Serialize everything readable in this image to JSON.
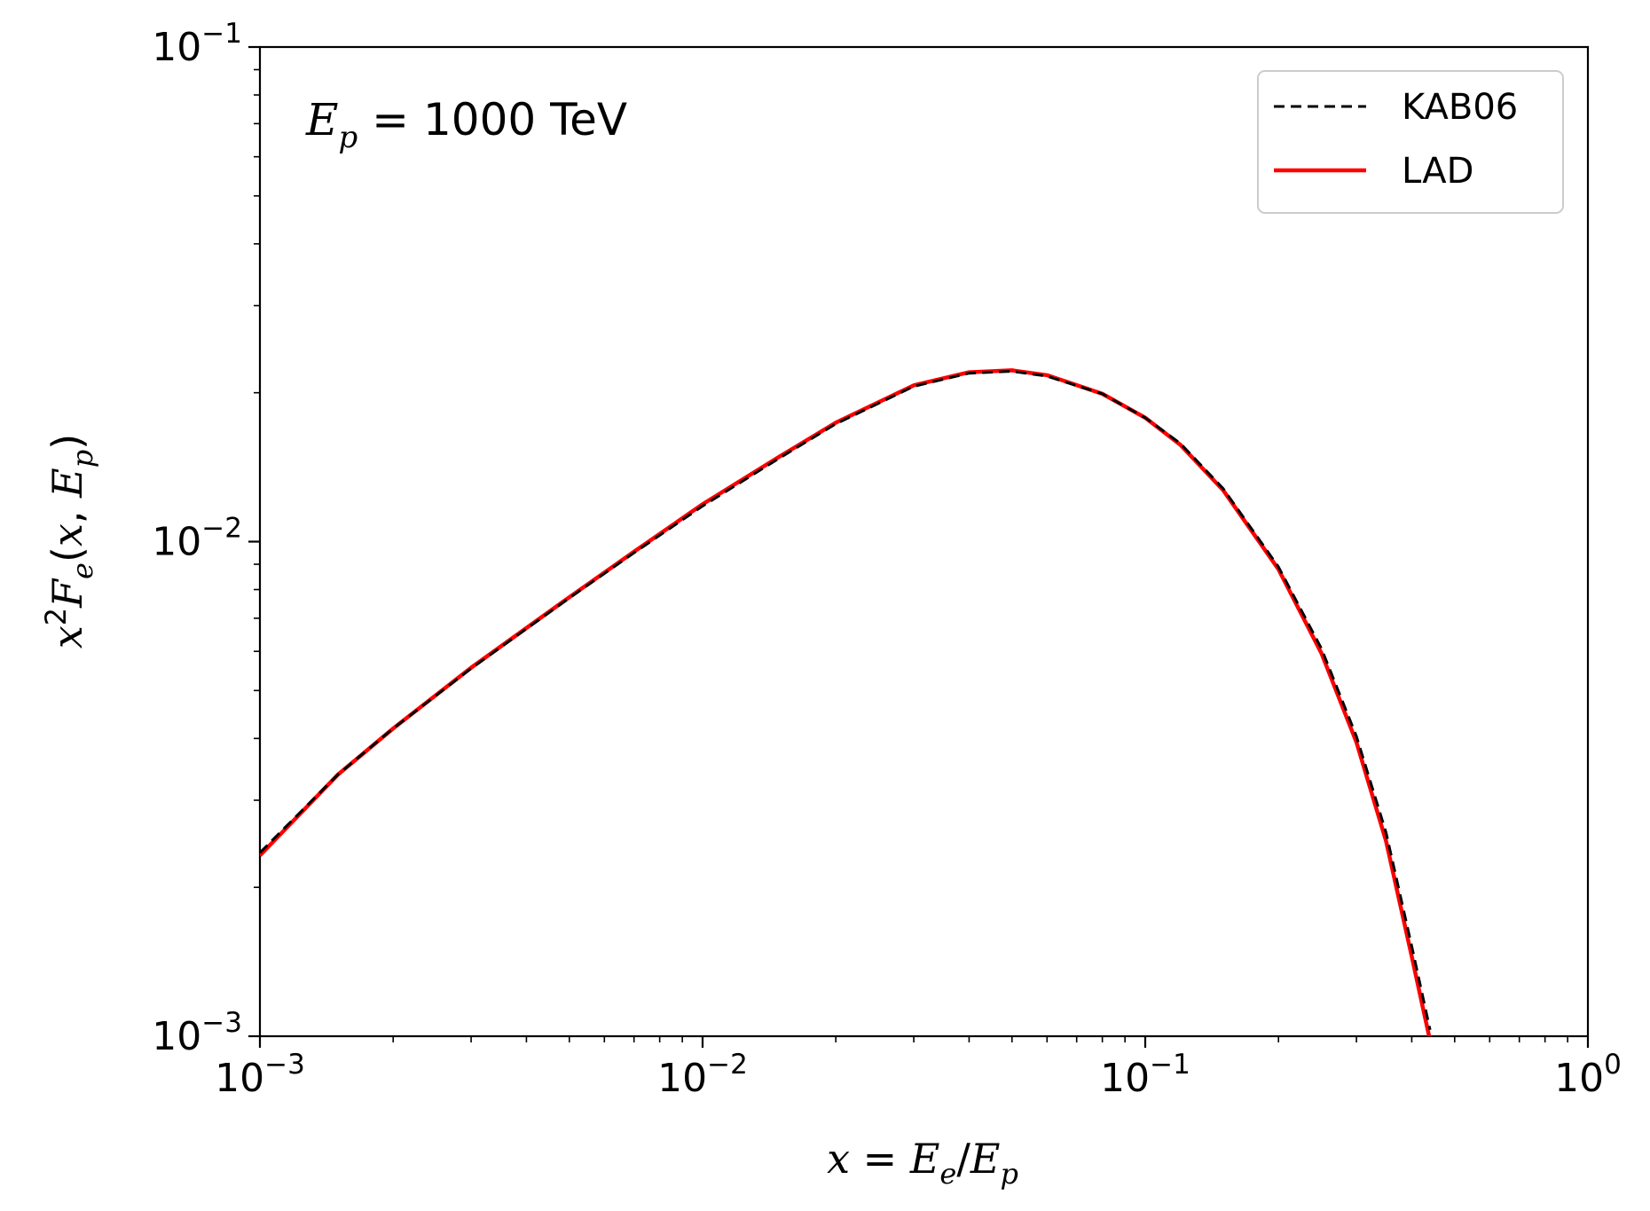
{
  "chart_data": {
    "type": "line",
    "xscale": "log",
    "yscale": "log",
    "xlim": [
      0.001,
      1
    ],
    "ylim": [
      0.001,
      0.1
    ],
    "xlabel": "x = E_e/E_p",
    "ylabel": "x^2 F_e(x, E_p)",
    "x_ticks": [
      {
        "base": "10",
        "exp": "−3",
        "value": 0.001
      },
      {
        "base": "10",
        "exp": "−2",
        "value": 0.01
      },
      {
        "base": "10",
        "exp": "−1",
        "value": 0.1
      },
      {
        "base": "10",
        "exp": "0",
        "value": 1
      }
    ],
    "y_ticks": [
      {
        "base": "10",
        "exp": "−3",
        "value": 0.001
      },
      {
        "base": "10",
        "exp": "−2",
        "value": 0.01
      },
      {
        "base": "10",
        "exp": "−1",
        "value": 0.1
      }
    ],
    "annotation": {
      "symbol": "E",
      "subscript": "p",
      "text": " = 1000 TeV"
    },
    "legend": {
      "placement": "top-right"
    },
    "grid": false,
    "series": [
      {
        "name": "KAB06",
        "color": "#000000",
        "style": "dashed",
        "x": [
          0.001,
          0.0015,
          0.002,
          0.003,
          0.005,
          0.007,
          0.01,
          0.015,
          0.02,
          0.03,
          0.04,
          0.05,
          0.06,
          0.08,
          0.1,
          0.12,
          0.15,
          0.2,
          0.25,
          0.3,
          0.35,
          0.4,
          0.44
        ],
        "y": [
          0.00235,
          0.00338,
          0.00419,
          0.00554,
          0.00769,
          0.00949,
          0.0118,
          0.0148,
          0.0173,
          0.0206,
          0.0219,
          0.0221,
          0.0216,
          0.0199,
          0.0178,
          0.0158,
          0.0128,
          0.00889,
          0.00608,
          0.00404,
          0.00258,
          0.00152,
          0.00103
        ]
      },
      {
        "name": "LAD",
        "color": "#ff0000",
        "style": "solid",
        "x": [
          0.001,
          0.0015,
          0.002,
          0.003,
          0.005,
          0.007,
          0.01,
          0.015,
          0.02,
          0.03,
          0.04,
          0.05,
          0.06,
          0.08,
          0.1,
          0.12,
          0.15,
          0.2,
          0.25,
          0.3,
          0.35,
          0.4,
          0.44
        ],
        "y": [
          0.00232,
          0.00338,
          0.00419,
          0.00556,
          0.00772,
          0.00954,
          0.0119,
          0.0149,
          0.0174,
          0.0207,
          0.022,
          0.0222,
          0.0217,
          0.0199,
          0.0178,
          0.0157,
          0.0127,
          0.00879,
          0.00595,
          0.00393,
          0.00248,
          0.00145,
          0.00098
        ]
      }
    ]
  }
}
